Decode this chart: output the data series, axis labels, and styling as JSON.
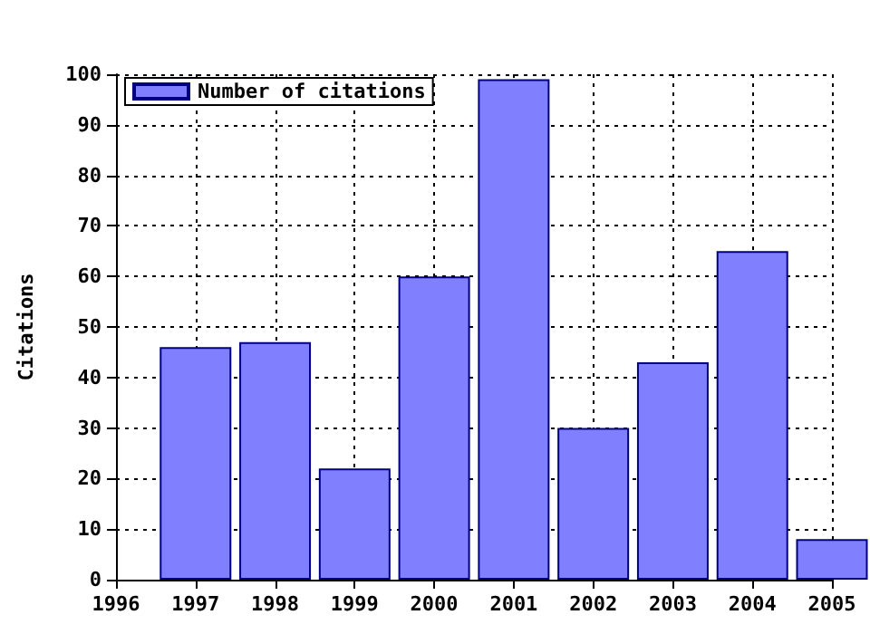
{
  "chart_data": {
    "type": "bar",
    "ylabel": "Citations",
    "x": [
      1997,
      1998,
      1999,
      2000,
      2001,
      2002,
      2003,
      2004,
      2005
    ],
    "series": [
      {
        "name": "Number of citations",
        "color": "#8080ff",
        "values": [
          46,
          47,
          22,
          60,
          99,
          30,
          43,
          65,
          8
        ]
      }
    ],
    "xlim": [
      1996,
      2005
    ],
    "xticks": [
      1996,
      1997,
      1998,
      1999,
      2000,
      2001,
      2002,
      2003,
      2004,
      2005
    ],
    "ylim": [
      0,
      100
    ],
    "yticks": [
      0,
      10,
      20,
      30,
      40,
      50,
      60,
      70,
      80,
      90,
      100
    ],
    "grid": true,
    "legend": "top left"
  }
}
